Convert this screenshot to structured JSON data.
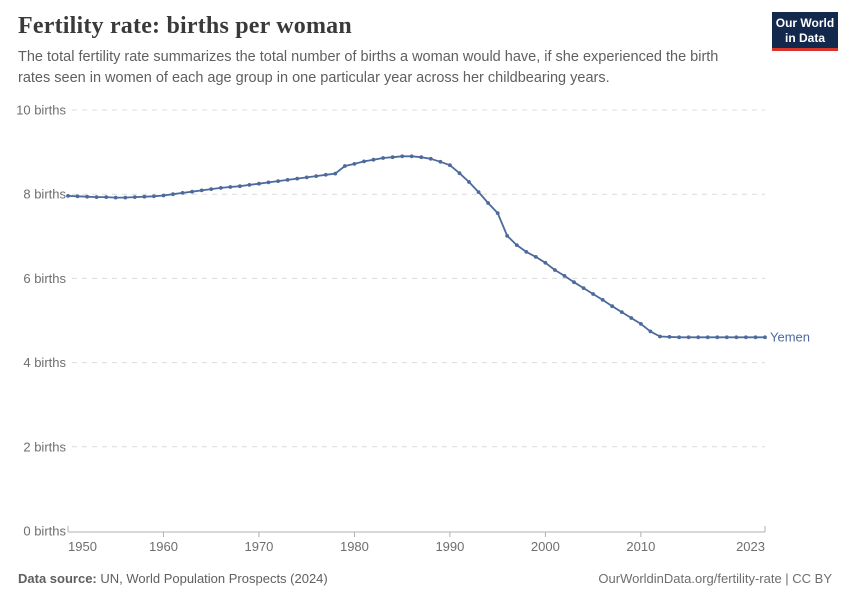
{
  "header": {
    "title": "Fertility rate: births per woman",
    "subtitle": "The total fertility rate summarizes the total number of births a woman would have, if she experienced the birth rates seen in women of each age group in one particular year across her childbearing years.",
    "logo": {
      "line1": "Our World",
      "line2": "in Data"
    }
  },
  "chart_data": {
    "type": "line",
    "title": "Fertility rate: births per woman",
    "xlabel": "",
    "ylabel": "births per woman",
    "x_range": [
      1950,
      2023
    ],
    "ylim": [
      0,
      10
    ],
    "grid": "horizontal-dashed",
    "legend_position": "end-of-line-label",
    "entity_label": "Yemen",
    "y_ticks": [
      {
        "value": 0,
        "label": "0 births"
      },
      {
        "value": 2,
        "label": "2 births"
      },
      {
        "value": 4,
        "label": "4 births"
      },
      {
        "value": 6,
        "label": "6 births"
      },
      {
        "value": 8,
        "label": "8 births"
      },
      {
        "value": 10,
        "label": "10 births"
      }
    ],
    "x_ticks": [
      {
        "value": 1950,
        "label": "1950"
      },
      {
        "value": 1960,
        "label": "1960"
      },
      {
        "value": 1970,
        "label": "1970"
      },
      {
        "value": 1980,
        "label": "1980"
      },
      {
        "value": 1990,
        "label": "1990"
      },
      {
        "value": 2000,
        "label": "2000"
      },
      {
        "value": 2010,
        "label": "2010"
      },
      {
        "value": 2023,
        "label": "2023"
      }
    ],
    "series": [
      {
        "name": "Yemen",
        "color": "#4c6a9c",
        "x": [
          1950,
          1951,
          1952,
          1953,
          1954,
          1955,
          1956,
          1957,
          1958,
          1959,
          1960,
          1961,
          1962,
          1963,
          1964,
          1965,
          1966,
          1967,
          1968,
          1969,
          1970,
          1971,
          1972,
          1973,
          1974,
          1975,
          1976,
          1977,
          1978,
          1979,
          1980,
          1981,
          1982,
          1983,
          1984,
          1985,
          1986,
          1987,
          1988,
          1989,
          1990,
          1991,
          1992,
          1993,
          1994,
          1995,
          1996,
          1997,
          1998,
          1999,
          2000,
          2001,
          2002,
          2003,
          2004,
          2005,
          2006,
          2007,
          2008,
          2009,
          2010,
          2011,
          2012,
          2013,
          2014,
          2015,
          2016,
          2017,
          2018,
          2019,
          2020,
          2021,
          2022,
          2023
        ],
        "values": [
          7.96,
          7.95,
          7.94,
          7.93,
          7.93,
          7.92,
          7.92,
          7.93,
          7.94,
          7.95,
          7.97,
          8.0,
          8.03,
          8.06,
          8.09,
          8.12,
          8.15,
          8.17,
          8.19,
          8.22,
          8.25,
          8.28,
          8.31,
          8.34,
          8.37,
          8.4,
          8.43,
          8.46,
          8.49,
          8.67,
          8.72,
          8.78,
          8.82,
          8.86,
          8.88,
          8.9,
          8.9,
          8.88,
          8.84,
          8.77,
          8.69,
          8.5,
          8.29,
          8.05,
          7.79,
          7.55,
          7.01,
          6.79,
          6.63,
          6.51,
          6.37,
          6.2,
          6.06,
          5.91,
          5.77,
          5.63,
          5.49,
          5.34,
          5.2,
          5.06,
          4.92,
          4.74,
          4.62,
          4.61,
          4.6,
          4.6,
          4.6,
          4.6,
          4.6,
          4.6,
          4.6,
          4.6,
          4.6,
          4.6
        ]
      }
    ]
  },
  "footer": {
    "source_label": "Data source:",
    "source_text": "UN, World Population Prospects (2024)",
    "credit": "OurWorldinData.org/fertility-rate | CC BY"
  },
  "colors": {
    "line": "#4c6a9c",
    "grid": "#dcdcdc",
    "axis": "#b0b0b0",
    "tick_text": "#6e6e6e",
    "logo_bg": "#12294d",
    "logo_red": "#d8352a"
  }
}
